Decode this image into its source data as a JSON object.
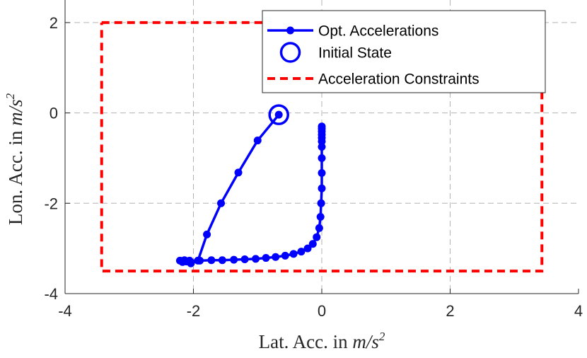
{
  "chart_data": {
    "type": "line",
    "xlabel": "Lat. Acc. in m/s²",
    "xlabel_parts": {
      "prefix": "Lat. Acc. in ",
      "unit_base": "m/s",
      "unit_exp": "2"
    },
    "ylabel": "Lon. Acc. in m/s²",
    "ylabel_parts": {
      "prefix": "Lon. Acc. in ",
      "unit_base": "m/s",
      "unit_exp": "2"
    },
    "xlim": [
      -4,
      4
    ],
    "ylim": [
      -4,
      2.5
    ],
    "xticks": [
      -4,
      -2,
      0,
      2,
      4
    ],
    "xtick_labels": [
      "-4",
      "-2",
      "0",
      "2",
      "4"
    ],
    "yticks": [
      -4,
      -2,
      0,
      2
    ],
    "ytick_labels": [
      "-4",
      "-2",
      "0",
      "2"
    ],
    "grid": true,
    "legend_position": "top-right",
    "series": [
      {
        "name": "Opt. Accelerations",
        "color": "#0000ff",
        "style": "solid-line-with-dot-markers",
        "x": [
          -0.67,
          -1.0,
          -1.3,
          -1.57,
          -1.79,
          -1.93,
          -2.04,
          -2.11,
          -2.14,
          -2.17,
          -2.21,
          -2.06,
          -1.9,
          -1.72,
          -1.55,
          -1.37,
          -1.2,
          -1.03,
          -0.87,
          -0.72,
          -0.57,
          -0.44,
          -0.32,
          -0.22,
          -0.14,
          -0.08,
          -0.04,
          -0.02,
          -0.01,
          0.0,
          0.0,
          0.0,
          0.0,
          0.0,
          0.0,
          0.0,
          0.0,
          0.0,
          0.0
        ],
        "y": [
          -0.04,
          -0.61,
          -1.32,
          -2.0,
          -2.69,
          -3.27,
          -3.33,
          -3.29,
          -3.26,
          -3.3,
          -3.27,
          -3.27,
          -3.27,
          -3.26,
          -3.26,
          -3.25,
          -3.24,
          -3.23,
          -3.21,
          -3.19,
          -3.16,
          -3.12,
          -3.07,
          -3.0,
          -2.9,
          -2.75,
          -2.55,
          -2.3,
          -2.0,
          -1.67,
          -1.33,
          -1.0,
          -0.75,
          -0.63,
          -0.55,
          -0.48,
          -0.41,
          -0.35,
          -0.3
        ]
      },
      {
        "name": "Initial State",
        "color": "#0000ff",
        "style": "circle-marker",
        "x": [
          -0.67
        ],
        "y": [
          -0.04
        ]
      },
      {
        "name": "Acceleration Constraints",
        "color": "#ff0000",
        "style": "dashed-line",
        "x": [
          -3.43,
          3.43,
          3.43,
          -3.43,
          -3.43
        ],
        "y": [
          2.0,
          2.0,
          -3.5,
          -3.5,
          2.0
        ]
      }
    ]
  }
}
